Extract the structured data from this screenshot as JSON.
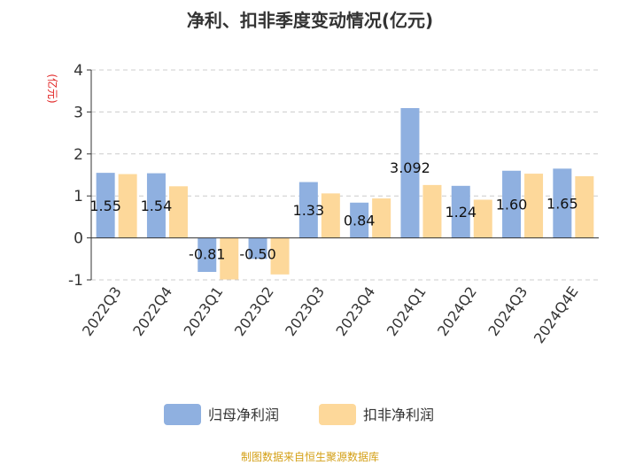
{
  "chart_data": {
    "type": "bar",
    "title": "净利、扣非季度变动情况(亿元)",
    "unit_label": "(亿元)",
    "categories": [
      "2022Q3",
      "2022Q4",
      "2023Q1",
      "2023Q2",
      "2023Q3",
      "2023Q4",
      "2024Q1",
      "2024Q2",
      "2024Q3",
      "2024Q4E"
    ],
    "series": [
      {
        "name": "归母净利润",
        "color": "#8fb0e0",
        "values": [
          1.55,
          1.54,
          -0.81,
          -0.5,
          1.33,
          0.84,
          3.092,
          1.24,
          1.6,
          1.65
        ],
        "labels": [
          "1.55",
          "1.54",
          "-0.81",
          "-0.50",
          "1.33",
          "0.84",
          "3.092",
          "1.24",
          "1.60",
          "1.65"
        ]
      },
      {
        "name": "扣非净利润",
        "color": "#fdd89a",
        "values": [
          1.52,
          1.23,
          -0.99,
          -0.87,
          1.06,
          0.94,
          1.26,
          0.91,
          1.53,
          1.47
        ]
      }
    ],
    "ylim": [
      -1,
      4
    ],
    "yticks": [
      "-1",
      "0",
      "1",
      "2",
      "3",
      "4"
    ],
    "grid": true,
    "legend_position": "bottom"
  },
  "source": "制图数据来自恒生聚源数据库"
}
